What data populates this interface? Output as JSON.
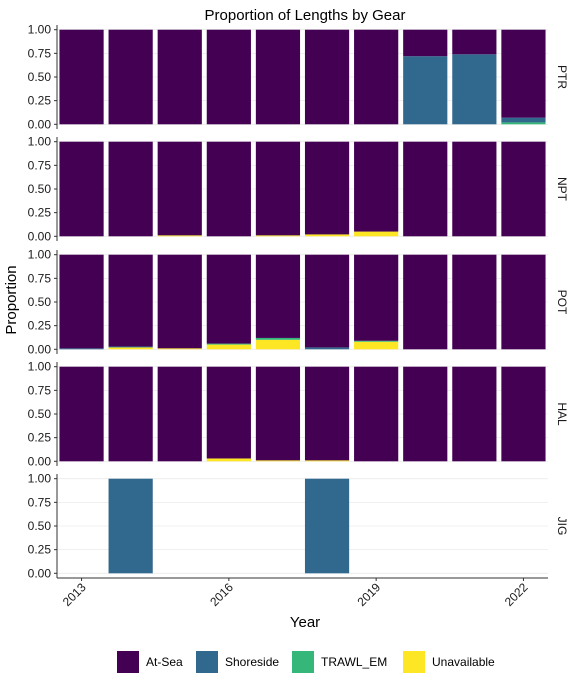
{
  "chart_data": {
    "type": "bar",
    "subtype": "stacked-proportion-faceted",
    "title": "Proportion of Lengths by Gear",
    "xlabel": "Year",
    "ylabel": "Proportion",
    "ylim": [
      0,
      1
    ],
    "y_ticks": [
      "0.00",
      "0.25",
      "0.50",
      "0.75",
      "1.00"
    ],
    "x_tick_labels": [
      "2013",
      "2016",
      "2019",
      "2022"
    ],
    "categories": [
      "2013",
      "2014",
      "2015",
      "2016",
      "2017",
      "2018",
      "2019",
      "2020",
      "2021",
      "2022"
    ],
    "colors": {
      "At-Sea": "#440154",
      "Shoreside": "#31688E",
      "TRAWL_EM": "#35B779",
      "Unavailable": "#FDE725"
    },
    "legend": {
      "position": "bottom",
      "entries": [
        "At-Sea",
        "Shoreside",
        "TRAWL_EM",
        "Unavailable"
      ]
    },
    "facets": [
      {
        "name": "PTR",
        "series": [
          {
            "name": "Unavailable",
            "values": [
              0,
              0,
              0,
              0,
              0,
              0,
              0,
              0,
              0,
              0
            ]
          },
          {
            "name": "TRAWL_EM",
            "values": [
              0,
              0,
              0,
              0,
              0,
              0,
              0,
              0,
              0,
              0.02
            ]
          },
          {
            "name": "Shoreside",
            "values": [
              0,
              0,
              0,
              0,
              0,
              0,
              0,
              0.72,
              0.74,
              0.05
            ]
          },
          {
            "name": "At-Sea",
            "values": [
              1,
              1,
              1,
              1,
              1,
              1,
              1,
              0.28,
              0.26,
              0.93
            ]
          }
        ]
      },
      {
        "name": "NPT",
        "series": [
          {
            "name": "Unavailable",
            "values": [
              0,
              0,
              0.01,
              0,
              0.01,
              0.02,
              0.05,
              0,
              0,
              0
            ]
          },
          {
            "name": "TRAWL_EM",
            "values": [
              0,
              0,
              0,
              0,
              0,
              0,
              0,
              0,
              0,
              0
            ]
          },
          {
            "name": "Shoreside",
            "values": [
              0,
              0,
              0,
              0,
              0,
              0,
              0,
              0,
              0,
              0
            ]
          },
          {
            "name": "At-Sea",
            "values": [
              1,
              1,
              0.99,
              1,
              0.99,
              0.98,
              0.95,
              1,
              1,
              1
            ]
          }
        ]
      },
      {
        "name": "POT",
        "series": [
          {
            "name": "Unavailable",
            "values": [
              0,
              0.02,
              0.01,
              0.05,
              0.1,
              0,
              0.08,
              0,
              0,
              0
            ]
          },
          {
            "name": "TRAWL_EM",
            "values": [
              0,
              0,
              0,
              0.01,
              0.02,
              0,
              0.01,
              0,
              0,
              0
            ]
          },
          {
            "name": "Shoreside",
            "values": [
              0.01,
              0.01,
              0,
              0,
              0,
              0.02,
              0,
              0,
              0,
              0
            ]
          },
          {
            "name": "At-Sea",
            "values": [
              0.99,
              0.97,
              0.99,
              0.94,
              0.88,
              0.98,
              0.91,
              1,
              1,
              1
            ]
          }
        ]
      },
      {
        "name": "HAL",
        "series": [
          {
            "name": "Unavailable",
            "values": [
              0,
              0,
              0,
              0.03,
              0.01,
              0.01,
              0,
              0,
              0,
              0
            ]
          },
          {
            "name": "TRAWL_EM",
            "values": [
              0,
              0,
              0,
              0,
              0,
              0,
              0,
              0,
              0,
              0
            ]
          },
          {
            "name": "Shoreside",
            "values": [
              0,
              0,
              0,
              0,
              0,
              0,
              0,
              0,
              0,
              0
            ]
          },
          {
            "name": "At-Sea",
            "values": [
              1,
              1,
              1,
              0.97,
              0.99,
              0.99,
              1,
              1,
              1,
              1
            ]
          }
        ]
      },
      {
        "name": "JIG",
        "series": [
          {
            "name": "Unavailable",
            "values": [
              0,
              0,
              0,
              0,
              0,
              0,
              0,
              0,
              0,
              0
            ]
          },
          {
            "name": "TRAWL_EM",
            "values": [
              0,
              0,
              0,
              0,
              0,
              0,
              0,
              0,
              0,
              0
            ]
          },
          {
            "name": "Shoreside",
            "values": [
              0,
              1,
              0,
              0,
              0,
              1,
              0,
              0,
              0,
              0
            ]
          },
          {
            "name": "At-Sea",
            "values": [
              0,
              0,
              0,
              0,
              0,
              0,
              0,
              0,
              0,
              0
            ]
          }
        ]
      }
    ]
  }
}
